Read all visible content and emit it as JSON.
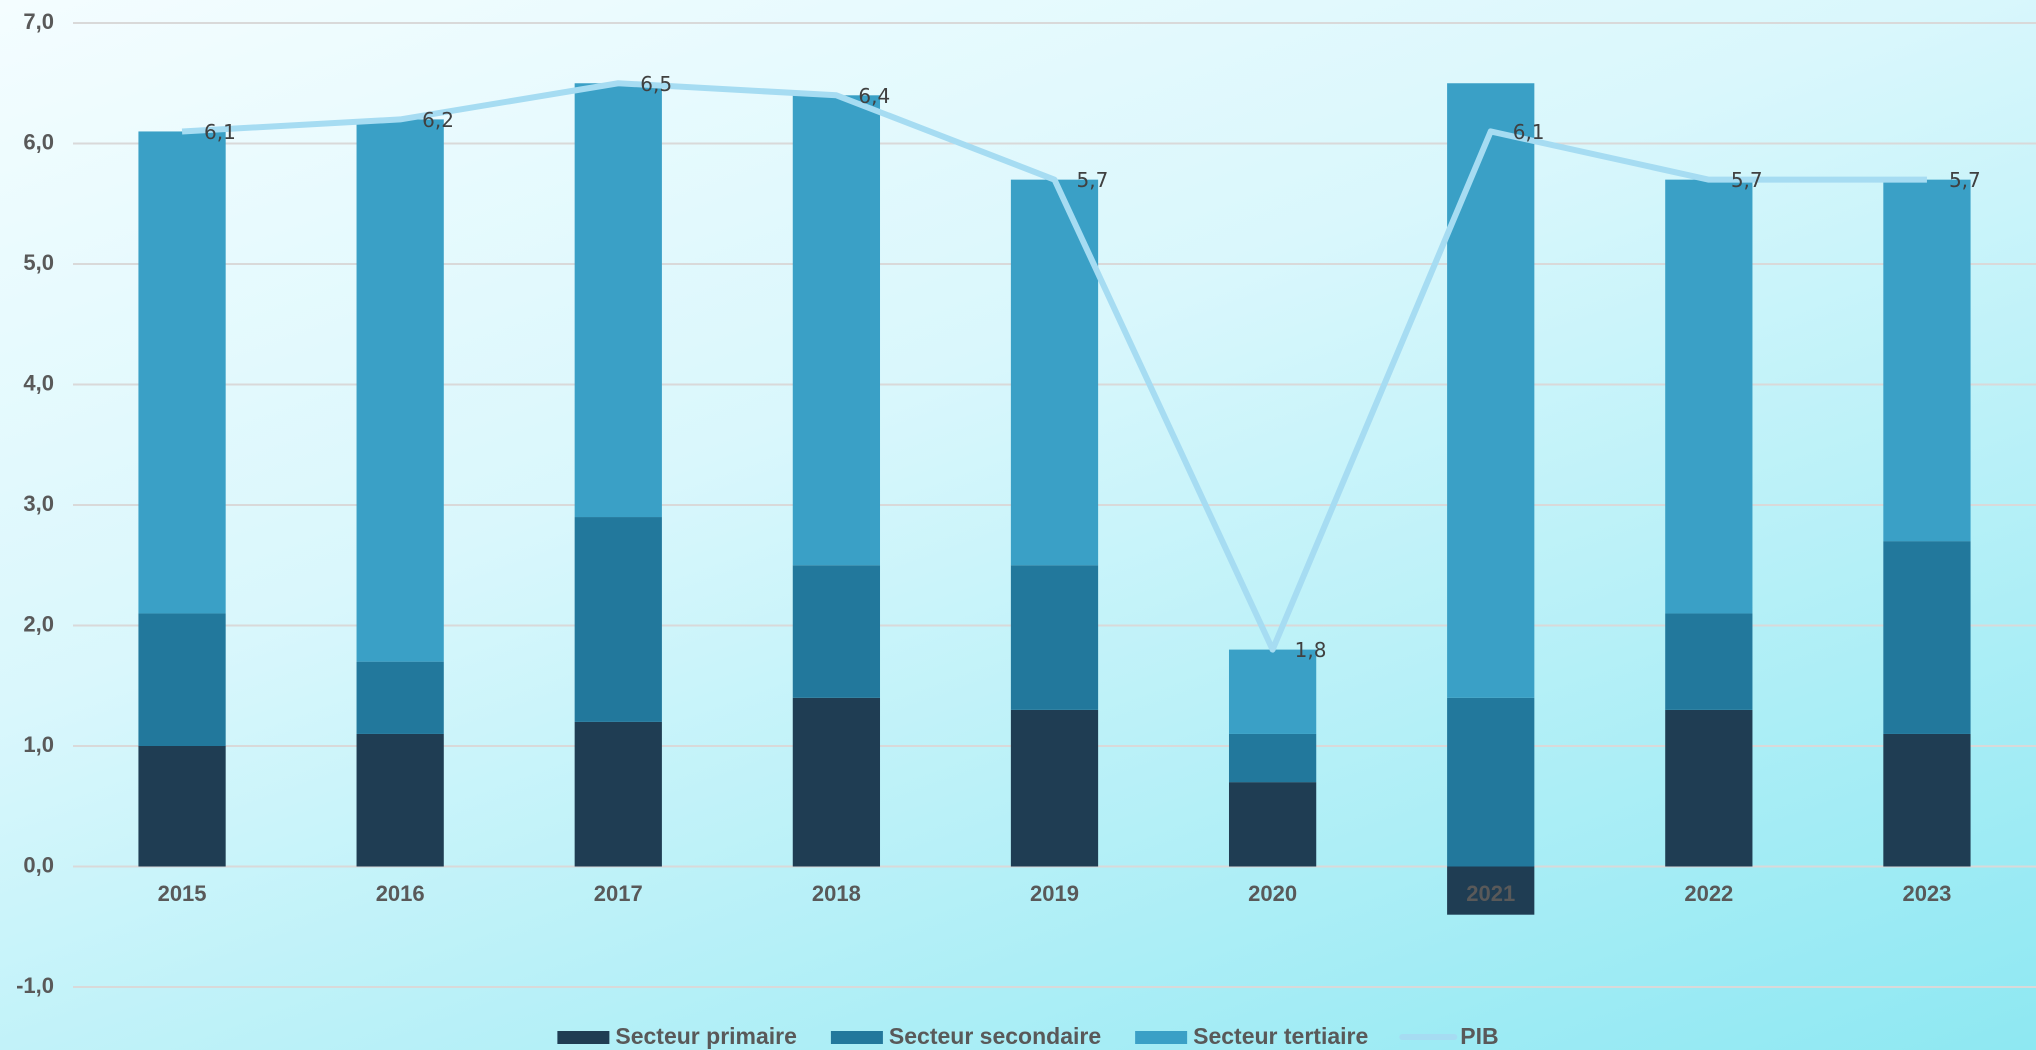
{
  "chart_data": {
    "type": "stacked-bar-line",
    "categories": [
      "2015",
      "2016",
      "2017",
      "2018",
      "2019",
      "2020",
      "2021",
      "2022",
      "2023"
    ],
    "series": [
      {
        "name": "Secteur primaire",
        "color": "#1f3d53",
        "values": [
          1.0,
          1.1,
          1.2,
          1.4,
          1.3,
          0.7,
          -0.4,
          1.3,
          1.1
        ]
      },
      {
        "name": "Secteur secondaire",
        "color": "#22789c",
        "values": [
          1.1,
          0.6,
          1.7,
          1.1,
          1.2,
          0.4,
          1.4,
          0.8,
          1.6
        ]
      },
      {
        "name": "Secteur tertiaire",
        "color": "#3aa0c6",
        "values": [
          4.0,
          4.5,
          3.6,
          3.9,
          3.2,
          0.7,
          5.1,
          3.6,
          3.0
        ]
      },
      {
        "name": "PIB",
        "type": "line",
        "color": "#a6dcf2",
        "values": [
          6.1,
          6.2,
          6.5,
          6.4,
          5.7,
          1.8,
          6.1,
          5.7,
          5.7
        ],
        "value_labels": [
          "6,1",
          "6,2",
          "6,5",
          "6,4",
          "5,7",
          "1,8",
          "6,1",
          "5,7",
          "5,7"
        ]
      }
    ],
    "ylim": [
      -1,
      7
    ],
    "yticks": [
      {
        "value": -1,
        "label": "-1,0"
      },
      {
        "value": 0,
        "label": "0,0"
      },
      {
        "value": 1,
        "label": "1,0"
      },
      {
        "value": 2,
        "label": "2,0"
      },
      {
        "value": 3,
        "label": "3,0"
      },
      {
        "value": 4,
        "label": "4,0"
      },
      {
        "value": 5,
        "label": "5,0"
      },
      {
        "value": 6,
        "label": "6,0"
      },
      {
        "value": 7,
        "label": "7,0"
      }
    ],
    "grid": true,
    "legend": "bottom"
  }
}
